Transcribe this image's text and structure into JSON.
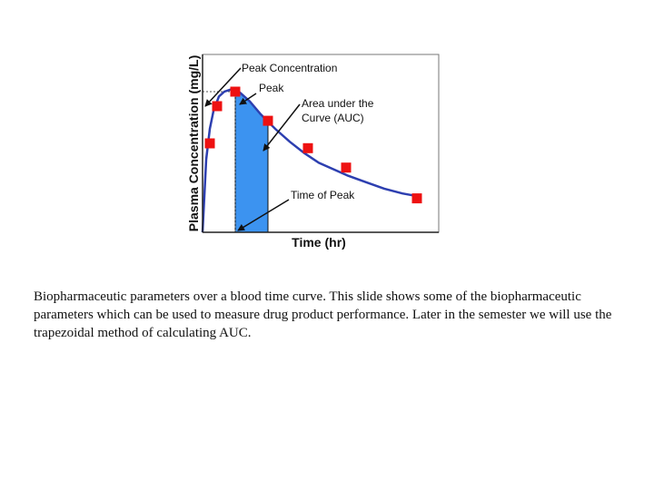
{
  "chart_data": {
    "type": "line",
    "title": "",
    "xlabel": "Time (hr)",
    "ylabel": "Plasma Concentration (mg/L)",
    "curve": {
      "x": [
        0,
        0.1,
        0.2,
        0.3,
        0.45,
        0.6,
        0.8,
        1.0,
        1.3,
        1.6,
        2.0,
        2.4,
        2.8,
        3.2,
        3.6,
        4.0,
        4.5,
        5.0,
        5.5,
        6.0
      ],
      "y": [
        0,
        0.45,
        0.64,
        0.75,
        0.84,
        0.87,
        0.885,
        0.87,
        0.81,
        0.73,
        0.64,
        0.56,
        0.49,
        0.43,
        0.39,
        0.35,
        0.31,
        0.27,
        0.24,
        0.22
      ]
    },
    "points": {
      "x": [
        0.2,
        0.4,
        0.9,
        1.8,
        2.9,
        3.95,
        5.9
      ],
      "y": [
        0.55,
        0.78,
        0.87,
        0.69,
        0.52,
        0.4,
        0.21
      ]
    },
    "auc_region": {
      "x_start": 0.9,
      "x_end": 1.8
    },
    "peak": {
      "x": 0.9,
      "y": 0.87
    },
    "xlim": [
      0,
      6.5
    ],
    "ylim": [
      0,
      1.1
    ],
    "colors": {
      "curve": "#2d3fb0",
      "points": "#ee1111",
      "auc_fill": "#3c93f0",
      "axis": "#222222"
    },
    "annotations": {
      "peak_concentration": "Peak Concentration",
      "peak": "Peak",
      "auc_line1": "Area under the",
      "auc_line2": "Curve (AUC)",
      "time_of_peak": "Time of Peak"
    }
  },
  "caption": "Biopharmaceutic parameters over a blood time curve. This slide shows some of the biopharmaceutic parameters which can be used to measure drug product performance. Later in the semester we will use the trapezoidal method of calculating AUC."
}
